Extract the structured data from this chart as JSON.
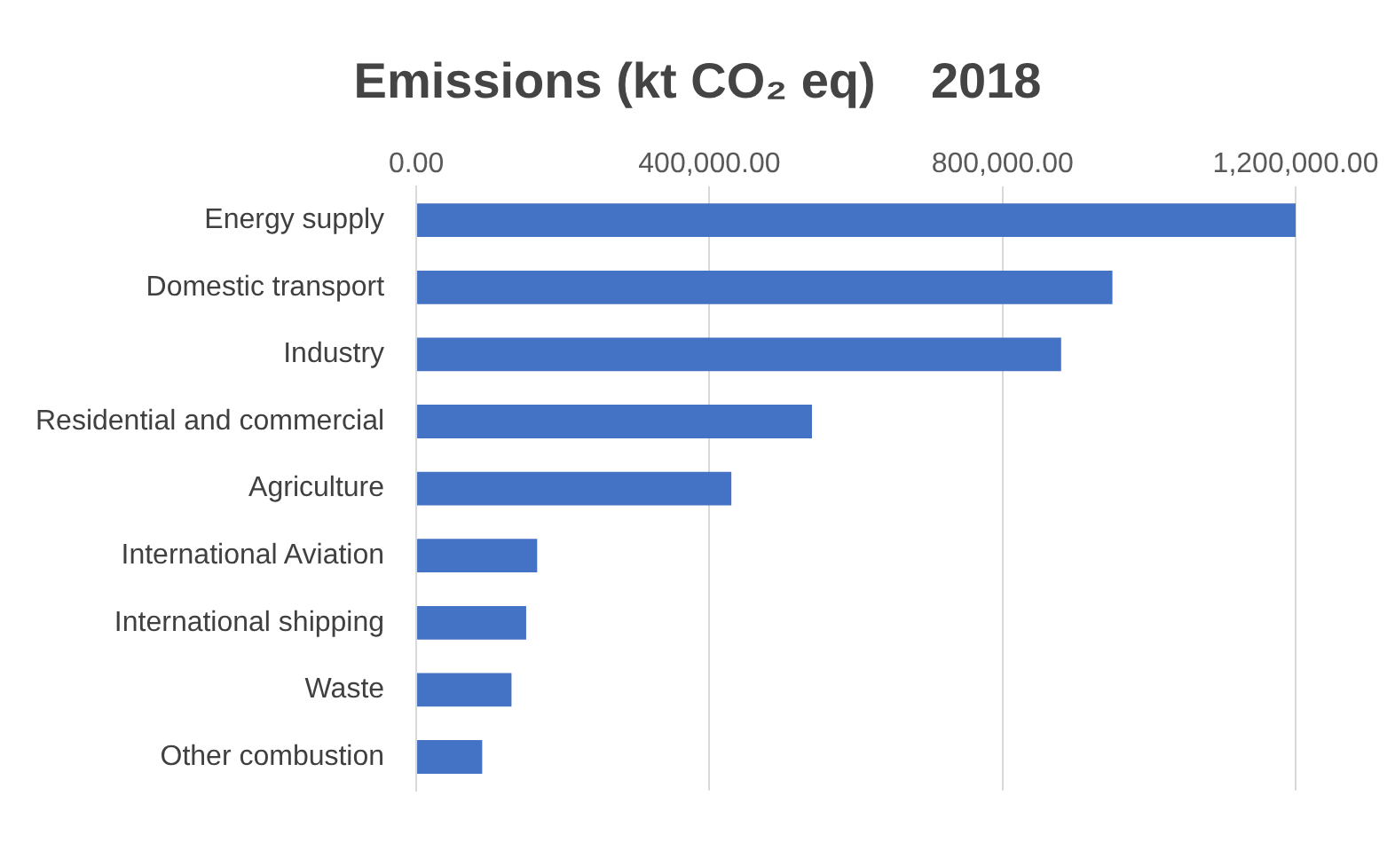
{
  "chart_data": {
    "type": "bar",
    "orientation": "horizontal",
    "title": "Emissions (kt CO₂ eq)    2018",
    "categories": [
      "Energy supply",
      "Domestic transport",
      "Industry",
      "Residential and commercial",
      "Agriculture",
      "International Aviation",
      "International shipping",
      "Waste",
      "Other combustion"
    ],
    "values": [
      1200000,
      950000,
      880000,
      540000,
      430000,
      165000,
      150000,
      130000,
      90000
    ],
    "color": "#4472c4",
    "xlim": [
      0,
      1200000
    ],
    "xticks": [
      {
        "value": 0,
        "label": "0.00"
      },
      {
        "value": 400000,
        "label": "400,000.00"
      },
      {
        "value": 800000,
        "label": "800,000.00"
      },
      {
        "value": 1200000,
        "label": "1,200,000.00"
      }
    ],
    "grid": "x",
    "legend": false
  }
}
